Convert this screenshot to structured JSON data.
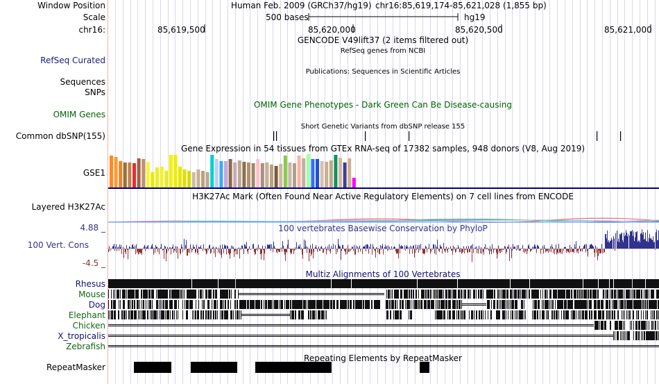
{
  "window_position": {
    "label": "Window Position",
    "text": "Human Feb. 2009 (GRCh37/hg19)",
    "coords": "chr16:85,619,174-85,621,028 (1,855 bp)"
  },
  "scale": {
    "label": "Scale",
    "bar_text": "500 bases",
    "assembly": "hg19"
  },
  "ruler": {
    "label": "chr16:",
    "ticks": [
      "85,619,500",
      "85,620,000",
      "85,620,500",
      "85,621,000"
    ]
  },
  "gencode": {
    "title": "GENCODE V49lift37 (2 items filtered out)"
  },
  "refseq": {
    "label": "RefSeq Curated",
    "title": "RefSeq genes from NCBI"
  },
  "publications": {
    "title": "Publications: Sequences in Scientific Articles"
  },
  "sequences": {
    "label": "Sequences"
  },
  "snps": {
    "label": "SNPs"
  },
  "omim": {
    "label": "OMIM Genes",
    "title": "OMIM Gene Phenotypes - Dark Green Can Be Disease-causing",
    "color": "#006400"
  },
  "dbsnp": {
    "title": "Short Genetic Variants from dbSNP release 155",
    "label": "Common dbSNP(155)"
  },
  "gtex": {
    "title": "Gene Expression in 54 tissues from GTEx RNA-seq of 17382 samples, 948 donors (V8, Aug 2019)",
    "label": "GSE1",
    "tissue_levels": [
      0.95,
      0.92,
      0.8,
      0.76,
      0.75,
      0.72,
      0.88,
      0.85,
      0.78,
      0.45,
      0.6,
      0.62,
      0.5,
      0.98,
      0.98,
      0.62,
      0.55,
      0.5,
      0.45,
      0.55,
      0.5,
      0.45,
      0.98,
      0.85,
      0.8,
      0.8,
      0.85,
      0.75,
      0.82,
      0.78,
      0.75,
      0.72,
      0.85,
      0.72,
      0.75,
      0.68,
      0.65,
      0.7,
      0.95,
      0.75,
      0.72,
      0.95,
      0.88,
      1.0,
      0.85,
      0.85,
      0.8,
      0.78,
      0.82,
      0.98,
      0.9,
      0.75,
      0.88,
      0.3
    ],
    "tissue_colors": [
      "#ff8c1a",
      "#ff9a33",
      "#e8862e",
      "#a0702c",
      "#c08050",
      "#e03030",
      "#a06040",
      "#c09070",
      "#f5f53a",
      "#e8e800",
      "#eded20",
      "#f0f030",
      "#e8e830",
      "#f0f000",
      "#eeee00",
      "#e6e600",
      "#e0e000",
      "#d8d800",
      "#ccbbaa",
      "#c8b090",
      "#bba080",
      "#c0a890",
      "#00d0d0",
      "#c0d0f0",
      "#40a8ff",
      "#c8a8d8",
      "#8b6b4a",
      "#c8a8b8",
      "#bba890",
      "#8b7050",
      "#b09070",
      "#a08868",
      "#ffc0cb",
      "#a89078",
      "#c8b098",
      "#b8a080",
      "#7b5b3b",
      "#d0b8a0",
      "#88cc44",
      "#c8b8a8",
      "#b0a090",
      "#ffb0a0",
      "#c0b0a0",
      "#a0ffa0",
      "#3070ff",
      "#2050d8",
      "#d8c0a8",
      "#c8b098",
      "#c0a888",
      "#109060",
      "#d0b8a0",
      "#404090",
      "#d0b090",
      "#ff00ff"
    ]
  },
  "h3k27ac": {
    "label": "Layered H3K27Ac",
    "title": "H3K27Ac Mark (Often Found Near Active Regulatory Elements) on 7 cell lines from ENCODE"
  },
  "conservation": {
    "title": "100 vertebrates Basewise Conservation by PhyloP",
    "label": "100 Vert. Cons",
    "ymax": "4.88 _",
    "ymin": "-4.5 _",
    "pos_color": "#32328c",
    "neg_color": "#8c3232"
  },
  "multiz": {
    "title": "Multiz Alignments of 100 Vertebrates",
    "species": [
      {
        "name": "Rhesus",
        "color": "#111177"
      },
      {
        "name": "Mouse",
        "color": "#116611"
      },
      {
        "name": "Dog",
        "color": "#111177"
      },
      {
        "name": "Elephant",
        "color": "#116611"
      },
      {
        "name": "Chicken",
        "color": "#116611"
      },
      {
        "name": "X_tropicalis",
        "color": "#111177"
      },
      {
        "name": "Zebrafish",
        "color": "#116611"
      }
    ]
  },
  "repeatmasker": {
    "title": "Repeating Elements by RepeatMasker",
    "label": "RepeatMasker"
  }
}
